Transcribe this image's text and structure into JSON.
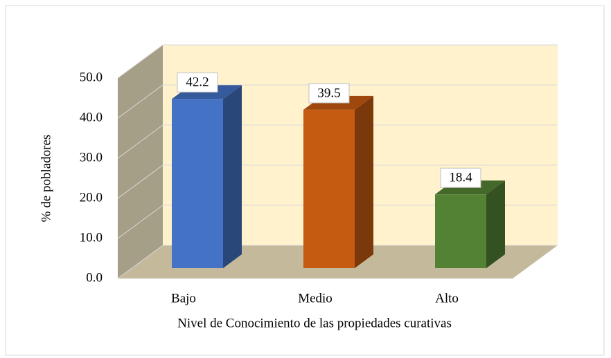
{
  "chart_data": {
    "type": "bar3d",
    "x_label": "Nivel de Conocimiento de las propiedades curativas",
    "y_label": "% de pobladores",
    "categories": [
      "Bajo",
      "Medio",
      "Alto"
    ],
    "values": [
      42.2,
      39.5,
      18.4
    ],
    "colors": [
      "#4472c4",
      "#c55a11",
      "#548235"
    ],
    "ylim": [
      0,
      50
    ],
    "yticks": [
      {
        "value": 0,
        "label": "0.0"
      },
      {
        "value": 10,
        "label": "10.0"
      },
      {
        "value": 20,
        "label": "20.0"
      },
      {
        "value": 30,
        "label": "30.0"
      },
      {
        "value": 40,
        "label": "40.0"
      },
      {
        "value": 50,
        "label": "50.0"
      }
    ],
    "grid": true
  }
}
